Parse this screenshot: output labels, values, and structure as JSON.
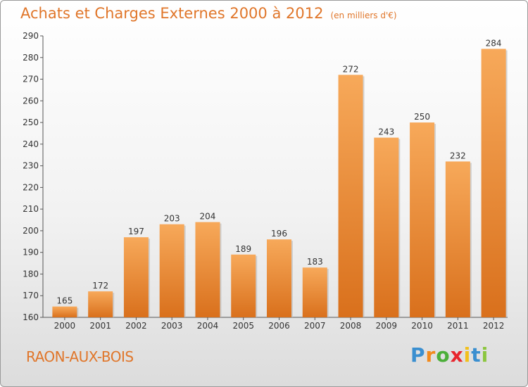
{
  "header": {
    "title": "Achats et Charges Externes 2000 à 2012",
    "unit": "(en milliers d'€)"
  },
  "footer": {
    "commune": "RAON-AUX-BOIS",
    "logo": {
      "letters": [
        "P",
        "r",
        "o",
        "x",
        "i",
        "t",
        "i"
      ],
      "colors": [
        "#3a8fd0",
        "#f28a1c",
        "#4caf3a",
        "#e8262e",
        "#f2c01c",
        "#3a8fd0",
        "#8cc63f"
      ]
    }
  },
  "chart_data": {
    "type": "bar",
    "title": "Achats et Charges Externes 2000 à 2012",
    "subtitle": "(en milliers d'€)",
    "categories": [
      "2000",
      "2001",
      "2002",
      "2003",
      "2004",
      "2005",
      "2006",
      "2007",
      "2008",
      "2009",
      "2010",
      "2011",
      "2012"
    ],
    "values": [
      165,
      172,
      197,
      203,
      204,
      189,
      196,
      183,
      272,
      243,
      250,
      232,
      284
    ],
    "ylim": [
      160,
      290
    ],
    "yticks": [
      160,
      170,
      180,
      190,
      200,
      210,
      220,
      230,
      240,
      250,
      260,
      270,
      280,
      290
    ],
    "grid": false,
    "bar_color_top": "#f7a95a",
    "bar_color_bottom": "#d9701c"
  }
}
